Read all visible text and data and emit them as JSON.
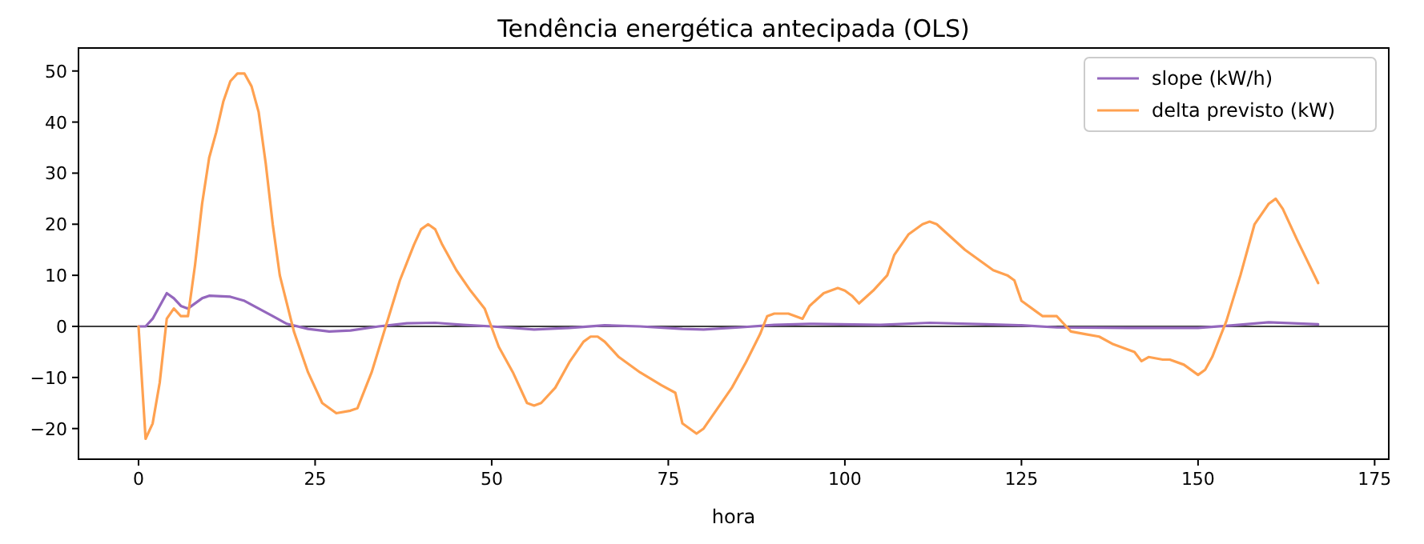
{
  "chart_data": {
    "type": "line",
    "title": "Tendência energética antecipada (OLS)",
    "xlabel": "hora",
    "xlim": [
      -8.5,
      177
    ],
    "xticks": [
      0,
      25,
      50,
      75,
      100,
      125,
      150,
      175
    ],
    "ylim": [
      -26,
      54.5
    ],
    "yticks": [
      -20,
      -10,
      0,
      10,
      20,
      30,
      40,
      50
    ],
    "grid": false,
    "legend": "top right",
    "line_style": "solid",
    "marker": "none",
    "ref_lines": [
      {
        "axis": "y",
        "value": 0,
        "color": "#000000"
      }
    ],
    "series": [
      {
        "name": "slope (kW/h)",
        "color": "#9467bd",
        "x": [
          0,
          1,
          2,
          4,
          5,
          6,
          7,
          9,
          10,
          13,
          15,
          17,
          19,
          21,
          24,
          27,
          30,
          34,
          38,
          42,
          46,
          50,
          56,
          61,
          66,
          71,
          77,
          80,
          85,
          90,
          95,
          105,
          112,
          120,
          125,
          130,
          140,
          150,
          155,
          160,
          167
        ],
        "values": [
          0,
          0,
          1.5,
          6.5,
          5.5,
          4,
          3.5,
          5.5,
          6,
          5.8,
          5,
          3.5,
          2,
          0.5,
          -0.5,
          -1,
          -0.8,
          0,
          0.6,
          0.7,
          0.3,
          0,
          -0.6,
          -0.3,
          0.2,
          0,
          -0.5,
          -0.6,
          -0.2,
          0.3,
          0.5,
          0.3,
          0.7,
          0.4,
          0.2,
          -0.2,
          -0.3,
          -0.3,
          0.2,
          0.8,
          0.4
        ]
      },
      {
        "name": "delta previsto (kW)",
        "color": "#ffa150",
        "x": [
          0,
          1,
          2,
          3,
          4,
          5,
          6,
          7,
          8,
          9,
          10,
          11,
          12,
          13,
          14,
          15,
          16,
          17,
          18,
          19,
          20,
          22,
          24,
          26,
          28,
          30,
          31,
          33,
          35,
          37,
          39,
          40,
          41,
          42,
          43,
          45,
          47,
          49,
          51,
          53,
          55,
          56,
          57,
          59,
          61,
          63,
          64,
          65,
          66,
          68,
          71,
          74,
          76,
          77,
          79,
          80,
          82,
          84,
          86,
          88,
          89,
          90,
          92,
          93,
          94,
          95,
          97,
          98,
          99,
          100,
          101,
          102,
          104,
          106,
          107,
          109,
          111,
          112,
          113,
          115,
          117,
          119,
          121,
          123,
          124,
          125,
          127,
          128,
          130,
          132,
          134,
          136,
          138,
          141,
          142,
          143,
          145,
          146,
          148,
          150,
          151,
          152,
          154,
          156,
          158,
          160,
          161,
          162,
          164,
          167
        ],
        "values": [
          0,
          -22,
          -19,
          -11,
          1.5,
          3.5,
          2,
          2,
          12,
          24,
          33,
          38,
          44,
          48,
          49.5,
          49.5,
          47,
          42,
          32,
          20,
          10,
          -1,
          -9,
          -15,
          -17,
          -16.5,
          -16,
          -9,
          0,
          9,
          16,
          19,
          20,
          19,
          16,
          11,
          7,
          3.5,
          -4,
          -9,
          -15,
          -15.5,
          -15,
          -12,
          -7,
          -3,
          -2,
          -2,
          -3,
          -6,
          -9,
          -11.5,
          -13,
          -19,
          -21,
          -20,
          -16,
          -12,
          -7,
          -1.5,
          2,
          2.5,
          2.5,
          2,
          1.5,
          4,
          6.5,
          7,
          7.5,
          7,
          6,
          4.5,
          7,
          10,
          14,
          18,
          20,
          20.5,
          20,
          17.5,
          15,
          13,
          11,
          10,
          9,
          5,
          3,
          2,
          2,
          -1,
          -1.5,
          -2,
          -3.5,
          -5,
          -6.8,
          -6,
          -6.5,
          -6.5,
          -7.5,
          -9.5,
          -8.5,
          -6,
          1,
          10,
          20,
          24,
          25,
          23,
          17,
          8.5
        ]
      }
    ]
  }
}
